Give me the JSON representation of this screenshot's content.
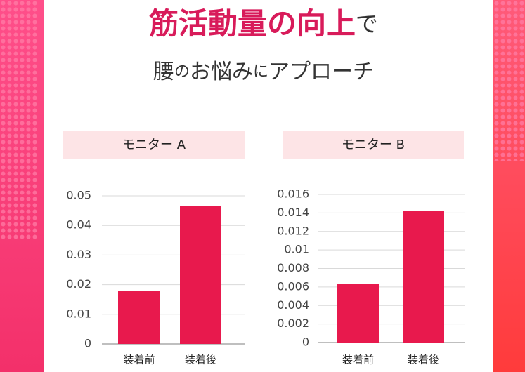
{
  "headline": {
    "line1": [
      "筋活動量の向上",
      "で"
    ],
    "line2": [
      "腰",
      "の",
      "お悩み",
      "に",
      "アプローチ"
    ]
  },
  "chart_data": [
    {
      "type": "bar",
      "title": "モニター A",
      "categories": [
        "装着前",
        "装着後"
      ],
      "values": [
        0.018,
        0.0465
      ],
      "color": "#e8194d",
      "ylim": [
        0,
        0.05
      ],
      "yticks": [
        0,
        0.01,
        0.02,
        0.03,
        0.04,
        0.05
      ],
      "grid": true
    },
    {
      "type": "bar",
      "title": "モニター B",
      "categories": [
        "装着前",
        "装着後"
      ],
      "values": [
        0.0063,
        0.0142
      ],
      "color": "#e8194d",
      "ylim": [
        0,
        0.016
      ],
      "yticks": [
        0,
        0.002,
        0.004,
        0.006,
        0.008,
        0.01,
        0.012,
        0.014,
        0.016
      ],
      "grid": true
    }
  ]
}
